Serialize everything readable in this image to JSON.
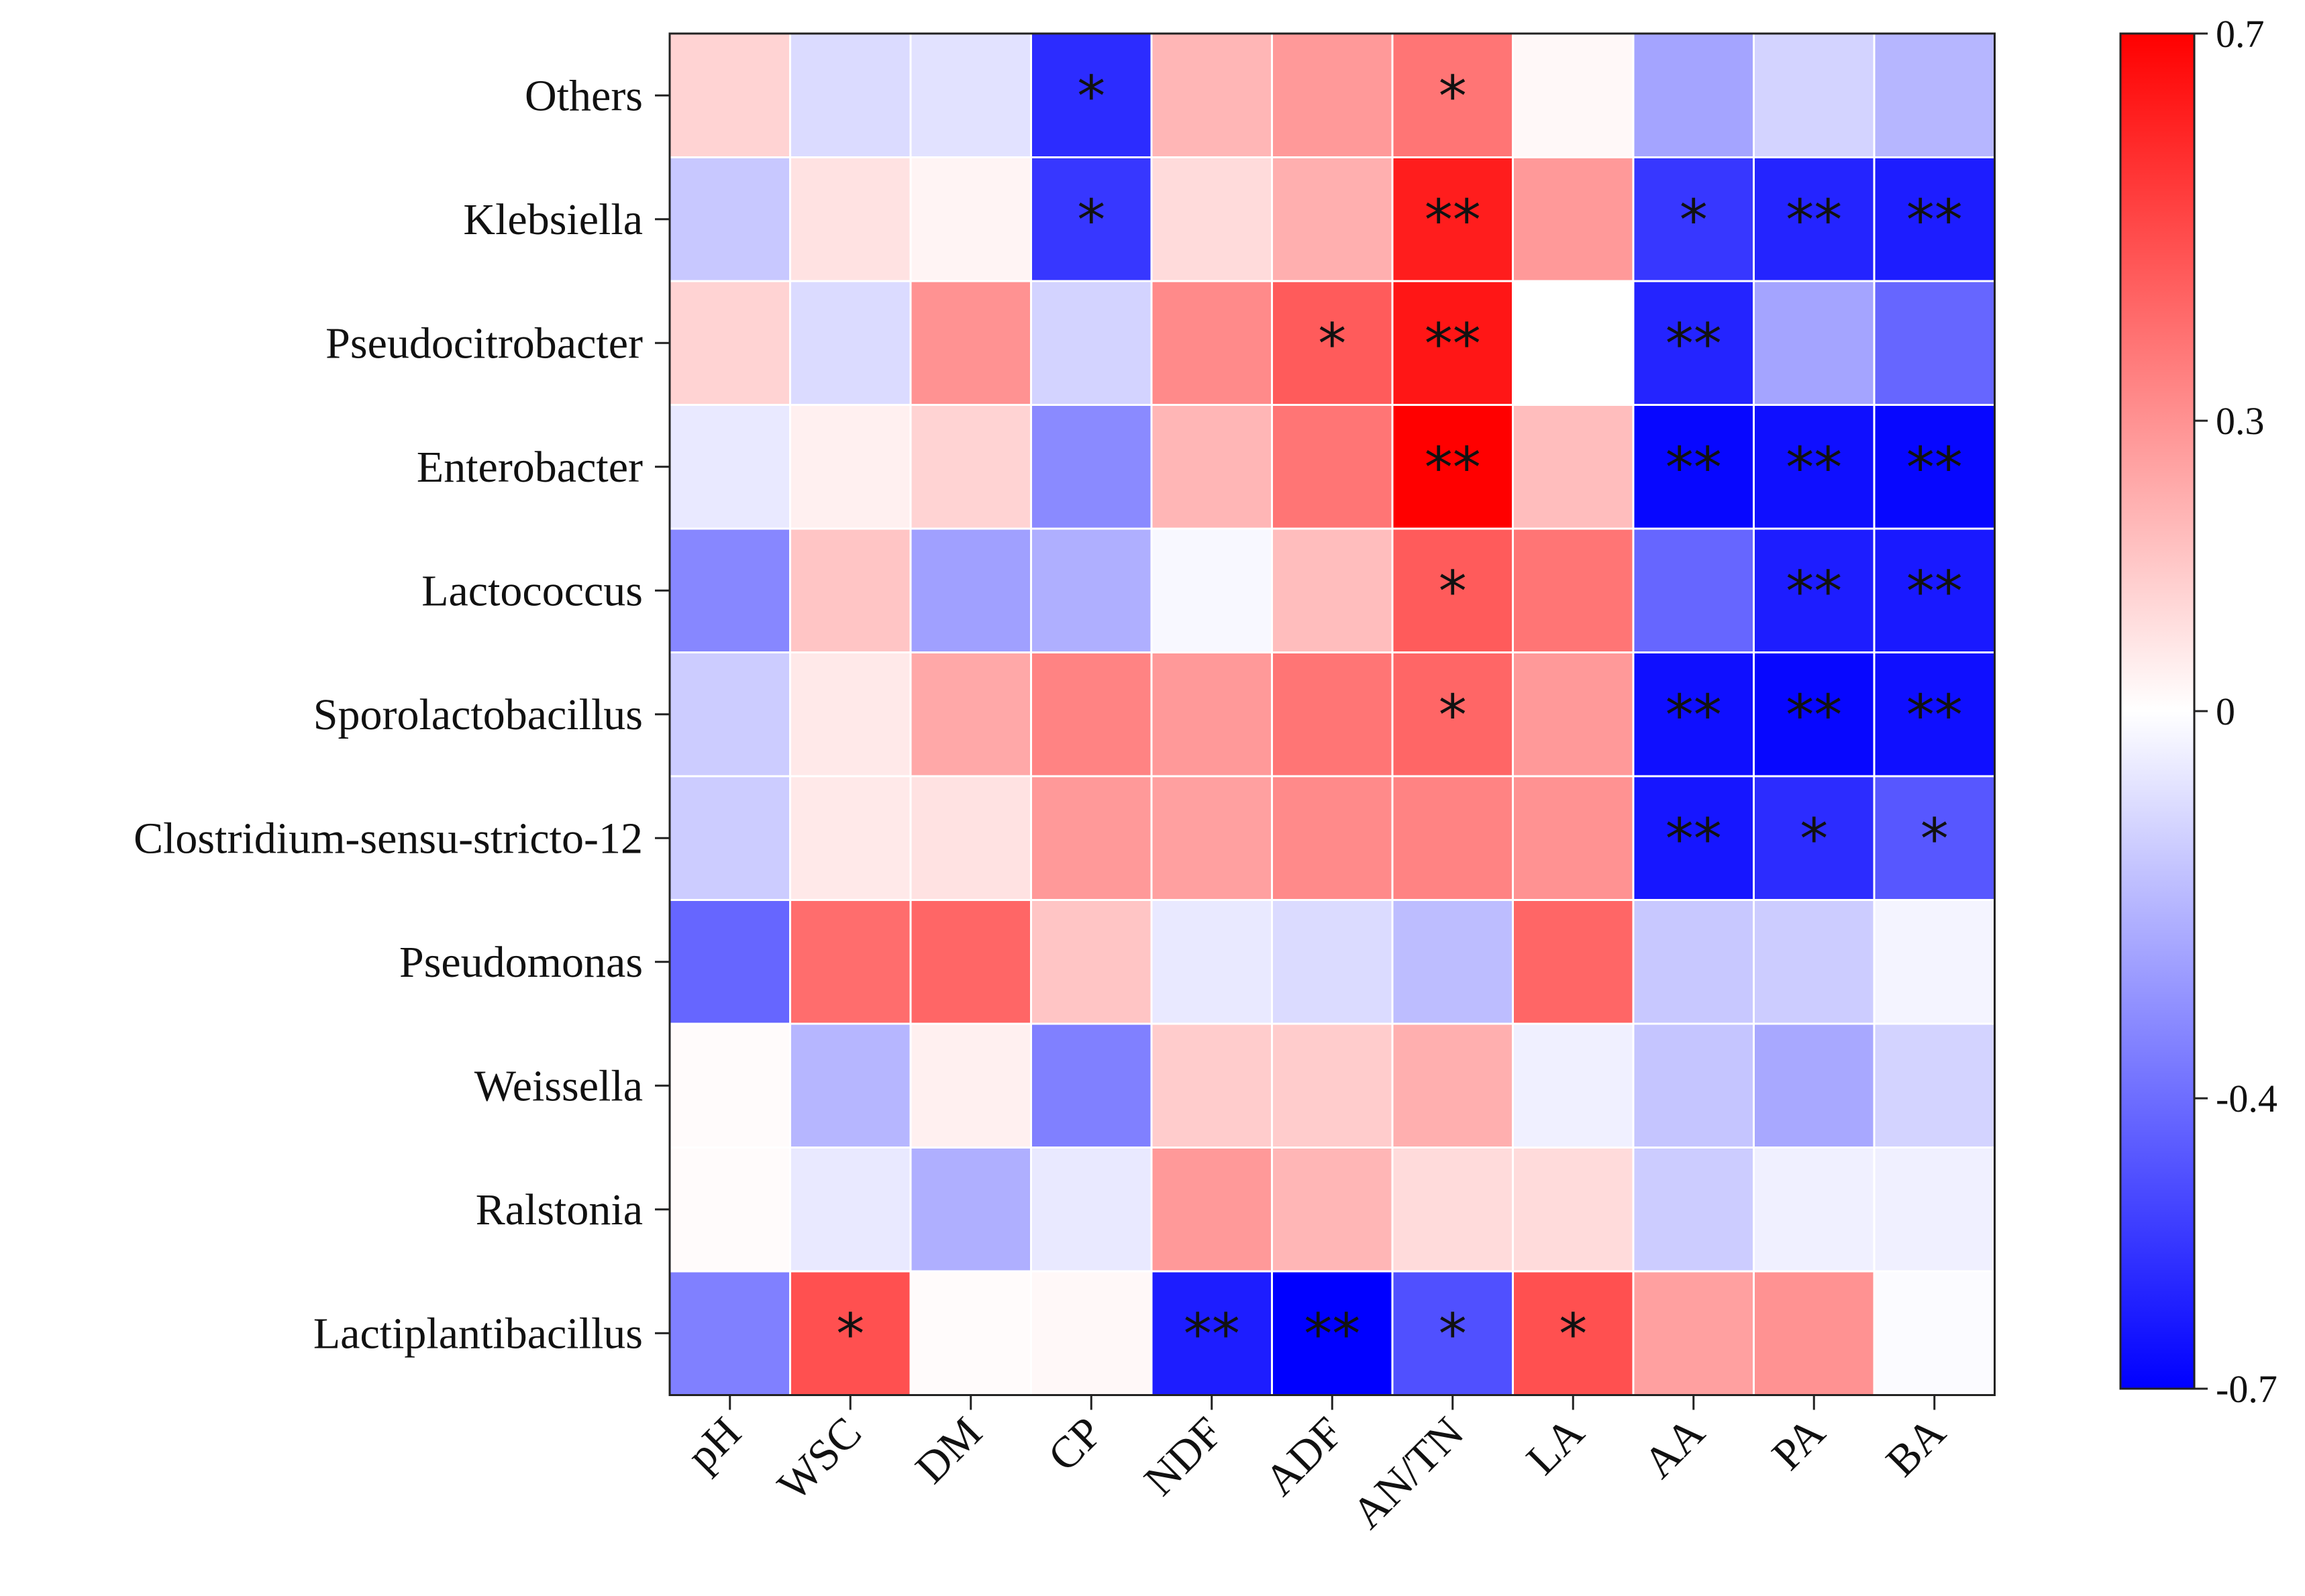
{
  "chart_data": {
    "type": "heatmap",
    "title": "",
    "xlabel": "",
    "ylabel": "",
    "rows": [
      "Others",
      "Klebsiella",
      "Pseudocitrobacter",
      "Enterobacter",
      "Lactococcus",
      "Sporolactobacillus",
      "Clostridium-sensu-stricto-12",
      "Pseudomonas",
      "Weissella",
      "Ralstonia",
      "Lactiplantibacillus"
    ],
    "columns": [
      "pH",
      "WSC",
      "DM",
      "CP",
      "NDF",
      "ADF",
      "AN/TN",
      "LA",
      "AA",
      "PA",
      "BA"
    ],
    "values": [
      [
        0.12,
        -0.1,
        -0.08,
        -0.58,
        0.2,
        0.28,
        0.38,
        0.02,
        -0.25,
        -0.12,
        -0.2
      ],
      [
        -0.15,
        0.08,
        0.03,
        -0.55,
        0.1,
        0.22,
        0.62,
        0.28,
        -0.55,
        -0.6,
        -0.62
      ],
      [
        0.12,
        -0.1,
        0.3,
        -0.12,
        0.32,
        0.45,
        0.64,
        0.0,
        -0.6,
        -0.25,
        -0.42
      ],
      [
        -0.06,
        0.04,
        0.12,
        -0.32,
        0.2,
        0.38,
        0.7,
        0.18,
        -0.68,
        -0.66,
        -0.68
      ],
      [
        -0.33,
        0.16,
        -0.26,
        -0.22,
        -0.02,
        0.18,
        0.45,
        0.38,
        -0.42,
        -0.62,
        -0.63
      ],
      [
        -0.14,
        0.06,
        0.24,
        0.34,
        0.28,
        0.38,
        0.42,
        0.28,
        -0.66,
        -0.68,
        -0.66
      ],
      [
        -0.14,
        0.06,
        0.08,
        0.28,
        0.26,
        0.32,
        0.34,
        0.3,
        -0.64,
        -0.58,
        -0.46
      ],
      [
        -0.42,
        0.4,
        0.42,
        0.16,
        -0.06,
        -0.1,
        -0.18,
        0.42,
        -0.15,
        -0.14,
        -0.03
      ],
      [
        0.01,
        -0.2,
        0.04,
        -0.35,
        0.14,
        0.14,
        0.22,
        -0.04,
        -0.16,
        -0.24,
        -0.12
      ],
      [
        0.01,
        -0.06,
        -0.22,
        -0.06,
        0.28,
        0.2,
        0.1,
        0.1,
        -0.14,
        -0.04,
        -0.04
      ],
      [
        -0.35,
        0.48,
        0.01,
        0.02,
        -0.62,
        -0.7,
        -0.48,
        0.48,
        0.26,
        0.3,
        -0.01
      ]
    ],
    "significance": [
      [
        "",
        "",
        "",
        "*",
        "",
        "",
        "*",
        "",
        "",
        "",
        ""
      ],
      [
        "",
        "",
        "",
        "*",
        "",
        "",
        "**",
        "",
        "*",
        "**",
        "**"
      ],
      [
        "",
        "",
        "",
        "",
        "",
        "*",
        "**",
        "",
        "**",
        "",
        ""
      ],
      [
        "",
        "",
        "",
        "",
        "",
        "",
        "**",
        "",
        "**",
        "**",
        "**"
      ],
      [
        "",
        "",
        "",
        "",
        "",
        "",
        "*",
        "",
        "",
        "**",
        "**"
      ],
      [
        "",
        "",
        "",
        "",
        "",
        "",
        "*",
        "",
        "**",
        "**",
        "**"
      ],
      [
        "",
        "",
        "",
        "",
        "",
        "",
        "",
        "",
        "**",
        "*",
        "*"
      ],
      [
        "",
        "",
        "",
        "",
        "",
        "",
        "",
        "",
        "",
        "",
        ""
      ],
      [
        "",
        "",
        "",
        "",
        "",
        "",
        "",
        "",
        "",
        "",
        ""
      ],
      [
        "",
        "",
        "",
        "",
        "",
        "",
        "",
        "",
        "",
        "",
        ""
      ],
      [
        "",
        "*",
        "",
        "",
        "**",
        "**",
        "*",
        "*",
        "",
        "",
        ""
      ]
    ],
    "colorbar": {
      "range": [
        -0.7,
        0.7
      ],
      "ticks": [
        0.7,
        0.3,
        0,
        -0.4,
        -0.7
      ],
      "tick_labels": [
        "0.7",
        "0.3",
        "0",
        "-0.4",
        "-0.7"
      ],
      "colors": {
        "low": "#0000ff",
        "mid": "#ffffff",
        "high": "#ff0000"
      }
    },
    "grid": true,
    "legend": "colorbar-right"
  }
}
